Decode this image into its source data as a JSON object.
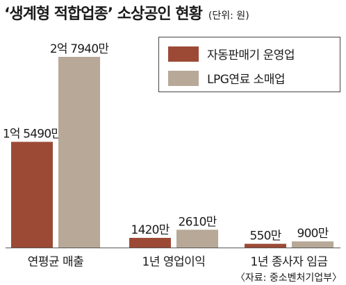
{
  "header": {
    "title": "‘생계형 적합업종’ 소상공인 현황",
    "unit": "(단위: 원)"
  },
  "legend": [
    {
      "label": "자동판매기 운영업",
      "color": "#9c4a36"
    },
    {
      "label": "LPG연료 소매업",
      "color": "#b7a898"
    }
  ],
  "source": "〈자료: 중소벤처기업부〉",
  "chart_data": {
    "type": "bar",
    "title": "‘생계형 적합업종’ 소상공인 현황",
    "unit": "원",
    "categories": [
      "연평균 매출",
      "1년 영업이익",
      "1년 종사자 임금"
    ],
    "series": [
      {
        "name": "자동판매기 운영업",
        "color": "#9c4a36",
        "values": [
          154900000,
          14200000,
          5500000
        ],
        "labels": [
          "1억 5490만",
          "1420만",
          "550만"
        ]
      },
      {
        "name": "LPG연료 소매업",
        "color": "#b7a898",
        "values": [
          279400000,
          26100000,
          9000000
        ],
        "labels": [
          "2억 7940만",
          "2610만",
          "900만"
        ]
      }
    ],
    "ylim": [
      0,
      279400000
    ],
    "grid": false,
    "legend_position": "top-right"
  }
}
